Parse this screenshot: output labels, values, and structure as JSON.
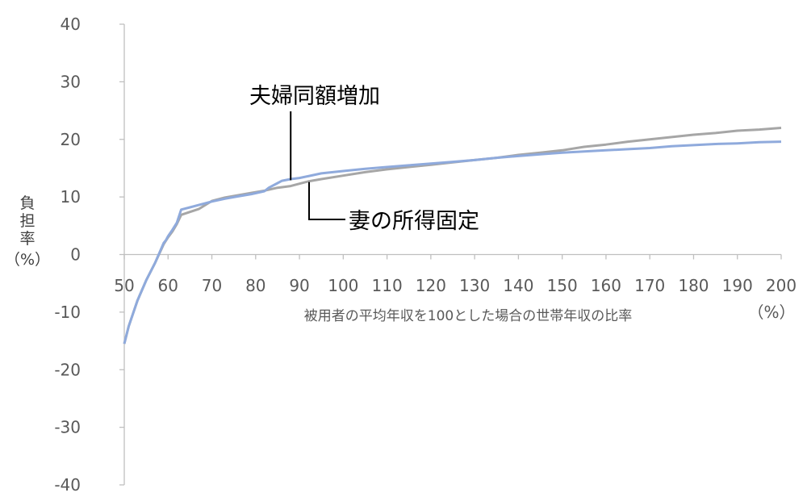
{
  "chart_data": {
    "type": "line",
    "xlabel": "被用者の平均年収を100とした場合の世帯年収の比率",
    "xunit": "（%）",
    "ylabel_chars": [
      "負",
      "担",
      "率"
    ],
    "yunit": "（%）",
    "xlim": [
      50,
      200
    ],
    "ylim": [
      -40,
      40
    ],
    "xticks": [
      50,
      60,
      70,
      80,
      90,
      100,
      110,
      120,
      130,
      140,
      150,
      160,
      170,
      180,
      190,
      200
    ],
    "yticks": [
      40,
      30,
      20,
      10,
      0,
      -10,
      -20,
      -30,
      -40
    ],
    "grid": false,
    "colors": {
      "couple_equal": "#8faadc",
      "wife_fixed": "#a6a6a6",
      "axis": "#bfbfbf",
      "text": "#595959"
    },
    "series": [
      {
        "name": "夫婦同額増加",
        "color": "#8faadc",
        "x": [
          50,
          51,
          53,
          55,
          57,
          59,
          59.5,
          60,
          61,
          62,
          63,
          65,
          67,
          70,
          73,
          76,
          79,
          82,
          83,
          85,
          86,
          88,
          90,
          92,
          95,
          100,
          105,
          110,
          115,
          120,
          125,
          130,
          135,
          140,
          145,
          150,
          155,
          160,
          165,
          170,
          175,
          180,
          185,
          190,
          195,
          200
        ],
        "values": [
          -15.5,
          -12.5,
          -8,
          -4.5,
          -1.5,
          2.0,
          2.5,
          3.2,
          4.3,
          5.5,
          7.8,
          8.2,
          8.6,
          9.2,
          9.7,
          10.1,
          10.5,
          11.0,
          11.6,
          12.4,
          12.8,
          13.1,
          13.3,
          13.6,
          14.1,
          14.5,
          14.9,
          15.2,
          15.5,
          15.8,
          16.1,
          16.4,
          16.8,
          17.1,
          17.4,
          17.7,
          17.9,
          18.1,
          18.3,
          18.5,
          18.8,
          19.0,
          19.2,
          19.3,
          19.5,
          19.6
        ]
      },
      {
        "name": "妻の所得固定",
        "color": "#a6a6a6",
        "x": [
          50,
          51,
          53,
          55,
          57,
          59,
          60,
          61,
          62,
          63,
          65,
          67,
          70,
          73,
          76,
          79,
          82,
          85,
          88,
          90,
          92,
          95,
          100,
          105,
          110,
          115,
          120,
          125,
          130,
          135,
          140,
          145,
          150,
          155,
          160,
          165,
          170,
          175,
          180,
          185,
          190,
          195,
          200
        ],
        "values": [
          -15.5,
          -12.5,
          -8,
          -4.5,
          -1.5,
          1.8,
          3.0,
          4.0,
          5.3,
          6.9,
          7.4,
          7.9,
          9.3,
          9.9,
          10.3,
          10.7,
          11.1,
          11.6,
          11.9,
          12.3,
          12.7,
          13.1,
          13.7,
          14.3,
          14.8,
          15.2,
          15.6,
          16.0,
          16.4,
          16.8,
          17.3,
          17.7,
          18.1,
          18.7,
          19.1,
          19.6,
          20.0,
          20.4,
          20.8,
          21.1,
          21.5,
          21.7,
          22.0
        ]
      }
    ],
    "annotations": [
      {
        "text": "夫婦同額増加",
        "series": 0
      },
      {
        "text": "妻の所得固定",
        "series": 1
      }
    ]
  }
}
